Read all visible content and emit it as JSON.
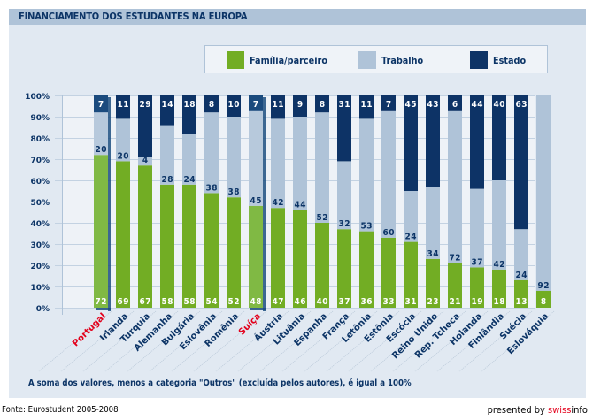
{
  "chart_data": {
    "type": "bar",
    "stacked": true,
    "percent_stacked": true,
    "title": "FINANCIAMENTO DOS ESTUDANTES NA EUROPA",
    "xlabel": "",
    "ylabel": "",
    "ylim": [
      0,
      100
    ],
    "yticks": [
      "0%",
      "10%",
      "20%",
      "30%",
      "40%",
      "50%",
      "60%",
      "70%",
      "80%",
      "90%",
      "100%"
    ],
    "grid": true,
    "legend_position": "top-right",
    "categories": [
      "Portugal",
      "Irlanda",
      "Turquia",
      "Alemanha",
      "Bulgária",
      "Eslovênia",
      "Romênia",
      "Suíça",
      "Áustria",
      "Lituânia",
      "Espanha",
      "França",
      "Letônia",
      "Estônia",
      "Escócia",
      "Reino Unido",
      "Rep. Tcheca",
      "Holanda",
      "Finlândia",
      "Suécia",
      "Eslováquia"
    ],
    "highlighted_categories": [
      "Portugal",
      "Suíça"
    ],
    "series": [
      {
        "name": "Família/parceiro",
        "color": "#72ad24",
        "values": [
          72,
          69,
          67,
          58,
          58,
          54,
          52,
          48,
          47,
          46,
          40,
          37,
          36,
          33,
          31,
          23,
          21,
          19,
          18,
          13,
          8
        ]
      },
      {
        "name": "Trabalho",
        "color": "#afc3d8",
        "values": [
          20,
          20,
          4,
          28,
          24,
          38,
          38,
          45,
          42,
          44,
          52,
          32,
          53,
          60,
          24,
          34,
          72,
          37,
          42,
          24,
          92
        ]
      },
      {
        "name": "Estado",
        "color": "#0d3366",
        "values": [
          7,
          11,
          29,
          14,
          18,
          8,
          10,
          7,
          11,
          9,
          8,
          31,
          11,
          7,
          45,
          43,
          6,
          44,
          40,
          63,
          null
        ]
      }
    ],
    "annotation": "A soma dos valores, menos a categoria \"Outros\" (excluída pelos autores), é igual a 100%"
  },
  "header": {
    "title": "FINANCIAMENTO DOS ESTUDANTES NA EUROPA"
  },
  "legend": {
    "items": [
      {
        "label": "Família/parceiro",
        "color": "#72ad24"
      },
      {
        "label": "Trabalho",
        "color": "#afc3d8"
      },
      {
        "label": "Estado",
        "color": "#0d3366"
      }
    ]
  },
  "footer": {
    "note": "A soma dos valores, menos a categoria \"Outros\" (excluída pelos autores), é igual a 100%",
    "source": "Fonte: Eurostudent 2005-2008",
    "presented_prefix": "presented by ",
    "brand_swiss": "swiss",
    "brand_info": "info"
  },
  "colors": {
    "highlight_label": "#e3001b",
    "axis_text": "#0c3466"
  }
}
